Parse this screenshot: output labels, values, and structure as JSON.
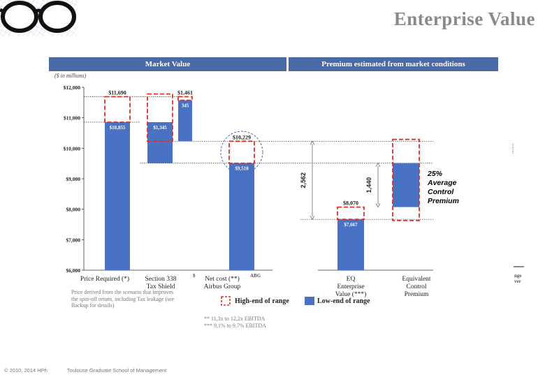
{
  "slide": {
    "title": "Enterprise Value",
    "header_left": "Market Value",
    "header_right": "Premium estimated from market conditions",
    "y_axis_note": "($ in millions)",
    "footnote_left": "Price derived from the scenario that improves the spin-off return, including Tax leakage (see Backup for details)",
    "footnote_ebitda": [
      "** 11,3x to 12,2x EBITDA",
      "*** 9,1% to 9,7% EBITDA"
    ],
    "premium_note": [
      "25%",
      "Average",
      "Control",
      "Premium"
    ],
    "legend_high": "High-end of range",
    "legend_low": "Low-end of range",
    "footer_copyright": "© 2010, 2014 HPh",
    "footer_school": "Toulouse Graduate School of Management",
    "cut_fragments": [
      "$",
      "ABG",
      "nge",
      "ver"
    ]
  },
  "colors": {
    "bar": "#4a72c4",
    "band": "#4a6aa6",
    "dash": "#e0301e",
    "title": "#8a8a8a"
  },
  "chart_data": {
    "type": "bar",
    "subtype": "waterfall",
    "ylabel": "($ in millions)",
    "ylim": [
      6000,
      12000
    ],
    "yticks": [
      6000,
      7000,
      8000,
      9000,
      10000,
      11000,
      12000
    ],
    "ytick_labels": [
      "$6,000",
      "$7,000",
      "$8,000",
      "$9,000",
      "$10,000",
      "$11,000",
      "$12,000"
    ],
    "categories": [
      [
        "Price Required (*)"
      ],
      [
        "Section 338",
        "Tax Shield"
      ],
      [
        "Net cost (**)",
        "Airbus Group"
      ],
      [
        "EQ",
        "Enterprise",
        "Value (***)"
      ],
      [
        "Equivalent",
        "Control",
        "Premium"
      ]
    ],
    "low_bars": [
      {
        "category": 0,
        "base": 6000,
        "top": 10855,
        "label": "$10,855"
      },
      {
        "category": 1,
        "base": 9510,
        "top": 10855,
        "label": "$1,345"
      },
      {
        "category": 1.5,
        "base": 10229,
        "top": 11574,
        "label": "345"
      },
      {
        "category": 2,
        "base": 6000,
        "top": 9510,
        "label": "$9,510"
      },
      {
        "category": 3,
        "base": 6000,
        "top": 7667,
        "label": "$7,667"
      },
      {
        "category": 4,
        "base": 8070,
        "top": 9510,
        "label": ""
      }
    ],
    "high_boxes": [
      {
        "category": 0,
        "base": 10855,
        "top": 11690,
        "label": "$11,690"
      },
      {
        "category": 1,
        "base": 10229,
        "top": 11780,
        "label": ""
      },
      {
        "category": 1.5,
        "base": 11574,
        "top": 11690,
        "label": "$1,461"
      },
      {
        "category": 2,
        "base": 9510,
        "top": 10229,
        "label": "$10,229"
      },
      {
        "category": 3,
        "base": 7667,
        "top": 8070,
        "label": "$8,070"
      },
      {
        "category": 4,
        "base": 7630,
        "top": 10290,
        "label": ""
      }
    ],
    "brackets": [
      {
        "label": "2,562",
        "from": 7667,
        "to": 10229
      },
      {
        "label": "1,440",
        "from": 8070,
        "to": 9510
      }
    ]
  }
}
